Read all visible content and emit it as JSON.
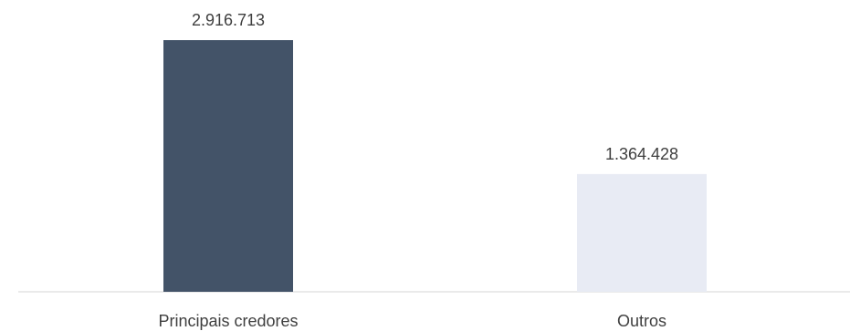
{
  "chart_data": {
    "type": "bar",
    "categories": [
      "Principais credores",
      "Outros"
    ],
    "values": [
      2916713,
      1364428
    ],
    "value_labels": [
      "2.916.713",
      "1.364.428"
    ],
    "bar_colors": [
      "#435368",
      "#e8ebf4"
    ],
    "axis_color": "#d6d6d6",
    "text_color": "#3f3f3f",
    "ylim": [
      0,
      2916713
    ],
    "grid": false,
    "legend": "none",
    "title": "",
    "xlabel": "",
    "ylabel": ""
  }
}
